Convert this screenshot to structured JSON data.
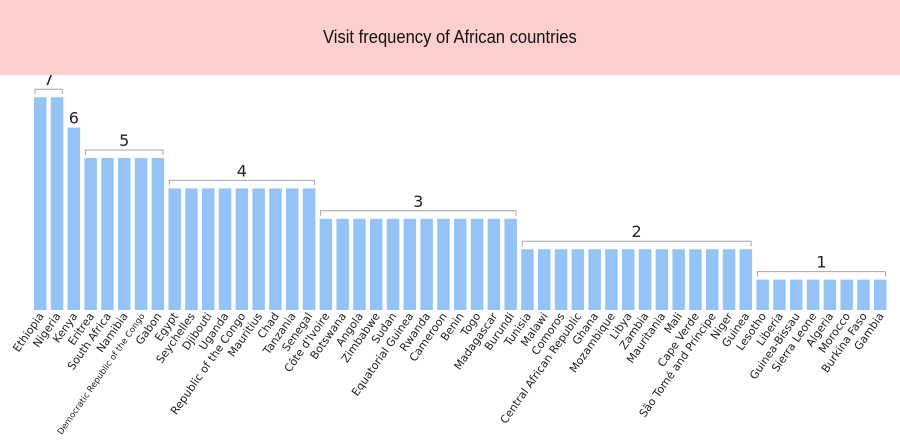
{
  "header": {
    "title": "Visit frequency of African countries",
    "background": "#fdd0cf"
  },
  "chart_data": {
    "type": "bar",
    "title": "Visit frequency of African countries",
    "xlabel": "",
    "ylabel": "",
    "ylim": [
      0,
      7
    ],
    "grid": false,
    "legend": null,
    "bar_color": "#94c4f5",
    "categories": [
      "Ethiopia",
      "Nigeria",
      "Kenya",
      "Eritrea",
      "South Africa",
      "Namibia",
      "Democratic Republic of the Congo",
      "Gabon",
      "Egypt",
      "Seychelles",
      "Djibouti",
      "Uganda",
      "Republic of the Congo",
      "Mauritius",
      "Chad",
      "Tanzania",
      "Senegal",
      "Côte d'Ivoire",
      "Botswana",
      "Angola",
      "Zimbabwe",
      "Sudan",
      "Equatorial Guinea",
      "Rwanda",
      "Cameroon",
      "Benin",
      "Togo",
      "Madagascar",
      "Burundi",
      "Tunisia",
      "Malawi",
      "Comoros",
      "Central African Republic",
      "Ghana",
      "Mozambique",
      "Libya",
      "Zambia",
      "Mauritania",
      "Mali",
      "Cape Verde",
      "São Tomé and Príncipe",
      "Niger",
      "Guinea",
      "Lesotho",
      "Liberia",
      "Guinea-Bissau",
      "Sierra Leone",
      "Algeria",
      "Morocco",
      "Burkina Faso",
      "Gambia"
    ],
    "values": [
      7,
      7,
      6,
      5,
      5,
      5,
      5,
      5,
      4,
      4,
      4,
      4,
      4,
      4,
      4,
      4,
      4,
      3,
      3,
      3,
      3,
      3,
      3,
      3,
      3,
      3,
      3,
      3,
      3,
      2,
      2,
      2,
      2,
      2,
      2,
      2,
      2,
      2,
      2,
      2,
      2,
      2,
      2,
      1,
      1,
      1,
      1,
      1,
      1,
      1,
      1
    ],
    "annotations": [
      {
        "label": "7",
        "from": 0,
        "to": 1
      },
      {
        "label": "6",
        "from": 2,
        "to": 2
      },
      {
        "label": "5",
        "from": 3,
        "to": 7
      },
      {
        "label": "4",
        "from": 8,
        "to": 16
      },
      {
        "label": "3",
        "from": 17,
        "to": 28
      },
      {
        "label": "2",
        "from": 29,
        "to": 42
      },
      {
        "label": "1",
        "from": 43,
        "to": 50
      }
    ]
  }
}
